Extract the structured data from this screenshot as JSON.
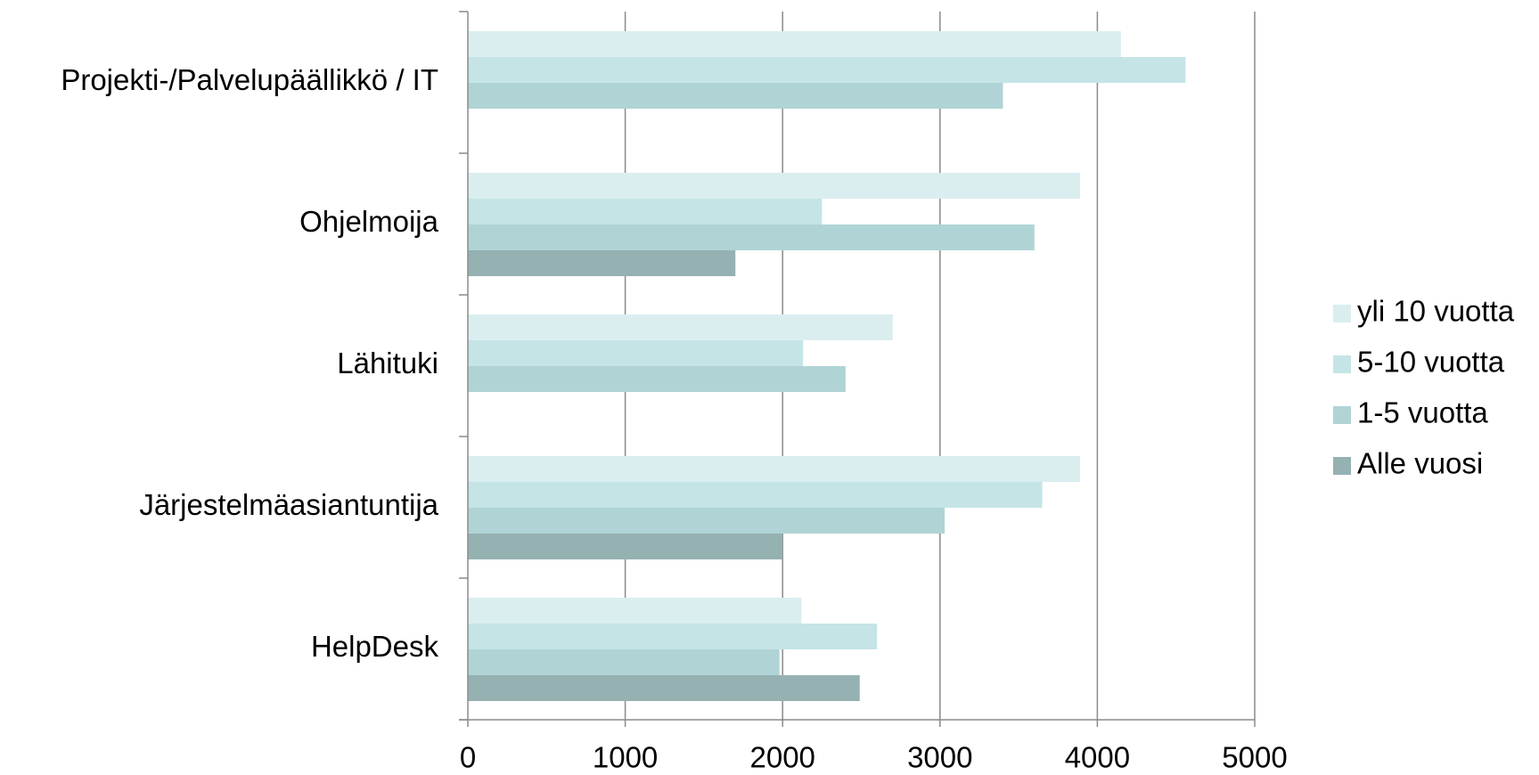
{
  "chart_data": {
    "type": "barh",
    "categories": [
      "Projekti-/Palvelupäällikkö / IT",
      "Ohjelmoija",
      "Lähituki",
      "Järjestelmäasiantuntija",
      "HelpDesk"
    ],
    "series": [
      {
        "name": "yli 10 vuotta",
        "color": "#daeef0",
        "values": [
          4150,
          3890,
          2700,
          3890,
          2120
        ]
      },
      {
        "name": "5-10 vuotta",
        "color": "#c5e4e6",
        "values": [
          4560,
          2250,
          2130,
          3650,
          2600
        ]
      },
      {
        "name": "1-5 vuotta",
        "color": "#b0d4d5",
        "values": [
          3400,
          3600,
          2400,
          3030,
          1980
        ]
      },
      {
        "name": "Alle vuosi",
        "color": "#95b1b2",
        "values": [
          null,
          1700,
          null,
          2000,
          2490
        ]
      }
    ],
    "xlim": [
      0,
      5000
    ],
    "xticks": [
      0,
      1000,
      2000,
      3000,
      4000,
      5000
    ],
    "grid": true,
    "legend": "right"
  }
}
